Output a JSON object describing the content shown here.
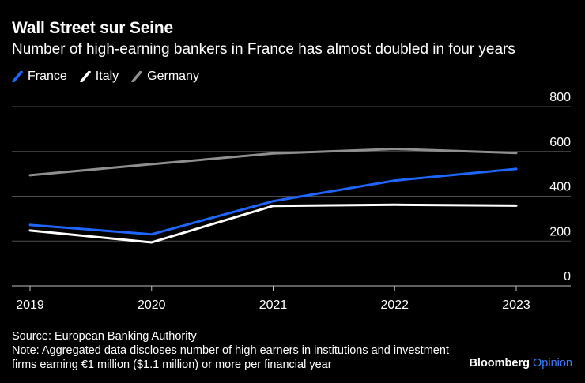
{
  "title": "Wall Street sur Seine",
  "subtitle": "Number of high-earning bankers in France has almost doubled in four years",
  "source": "Source: European Banking Authority",
  "note": "Note: Aggregated data discloses number of high earners in institutions and investment firms earning €1 million ($1.1 million) or more per financial year",
  "brand": {
    "name": "Bloomberg",
    "suffix": "Opinion"
  },
  "colors": {
    "France": "#1f66ff",
    "Italy": "#ffffff",
    "Germany": "#8f8f8f",
    "grid": "#4d4d4d",
    "axis": "#bfbfbf"
  },
  "chart_data": {
    "type": "line",
    "x": [
      "2019",
      "2020",
      "2021",
      "2022",
      "2023"
    ],
    "series": [
      {
        "name": "France",
        "values": [
          272,
          230,
          378,
          470,
          522
        ]
      },
      {
        "name": "Italy",
        "values": [
          247,
          194,
          357,
          362,
          358
        ]
      },
      {
        "name": "Germany",
        "values": [
          494,
          543,
          591,
          611,
          593
        ]
      }
    ],
    "ylim": [
      0,
      800
    ],
    "yticks": [
      0,
      200,
      400,
      600,
      800
    ],
    "ytick_labels": [
      "0",
      "200",
      "400",
      "600",
      "800"
    ],
    "legend_position": "top-left",
    "grid": true
  }
}
